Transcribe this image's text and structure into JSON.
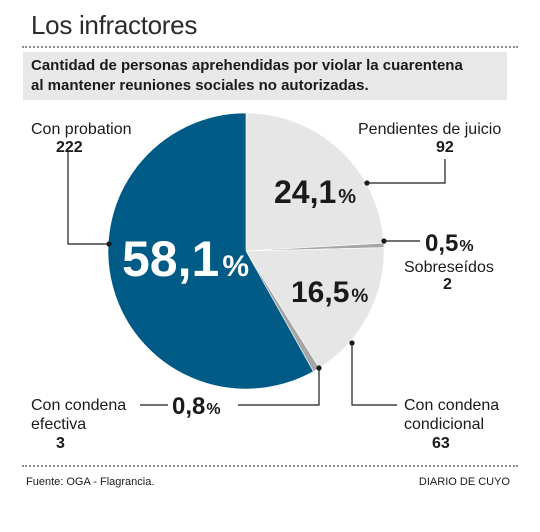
{
  "header": {
    "title": "Los infractores",
    "subtitle_line1": "Cantidad de personas aprehendidas por violar la cuarentena",
    "subtitle_line2": "al mantener reuniones sociales no autorizadas."
  },
  "chart_data": {
    "type": "pie",
    "title": "Los infractores",
    "subtitle": "Cantidad de personas aprehendidas por violar la cuarentena al mantener reuniones sociales no autorizadas.",
    "slices": [
      {
        "label": "Pendientes de juicio",
        "value": 92,
        "pct_text": "24,1",
        "color": "#e6e6e6"
      },
      {
        "label": "Sobreseídos",
        "value": 2,
        "pct_text": "0,5",
        "color": "#a6a6a6"
      },
      {
        "label": "Con condena condicional",
        "value": 63,
        "pct_text": "16,5",
        "color": "#e6e6e6"
      },
      {
        "label": "Con condena efectiva",
        "value": 3,
        "pct_text": "0,8",
        "color": "#a6a6a6"
      },
      {
        "label": "Con probation",
        "value": 222,
        "pct_text": "58,1",
        "color": "#005a86"
      }
    ]
  },
  "labels": {
    "probation": {
      "name": "Con probation",
      "count": "222",
      "pct": "58,1",
      "pct_sign": "%"
    },
    "pendientes": {
      "name": "Pendientes de juicio",
      "count": "92",
      "pct": "24,1",
      "pct_sign": "%"
    },
    "sobreseidos": {
      "name": "Sobreseídos",
      "count": "2",
      "pct": "0,5",
      "pct_sign": "%"
    },
    "condicional": {
      "name_line1": "Con condena",
      "name_line2": "condicional",
      "count": "63",
      "pct": "16,5",
      "pct_sign": "%"
    },
    "efectiva": {
      "name_line1": "Con condena",
      "name_line2": "efectiva",
      "count": "3",
      "pct": "0,8",
      "pct_sign": "%"
    }
  },
  "footer": {
    "source": "Fuente: OGA - Flagrancia.",
    "credit": "DIARIO DE CUYO"
  }
}
